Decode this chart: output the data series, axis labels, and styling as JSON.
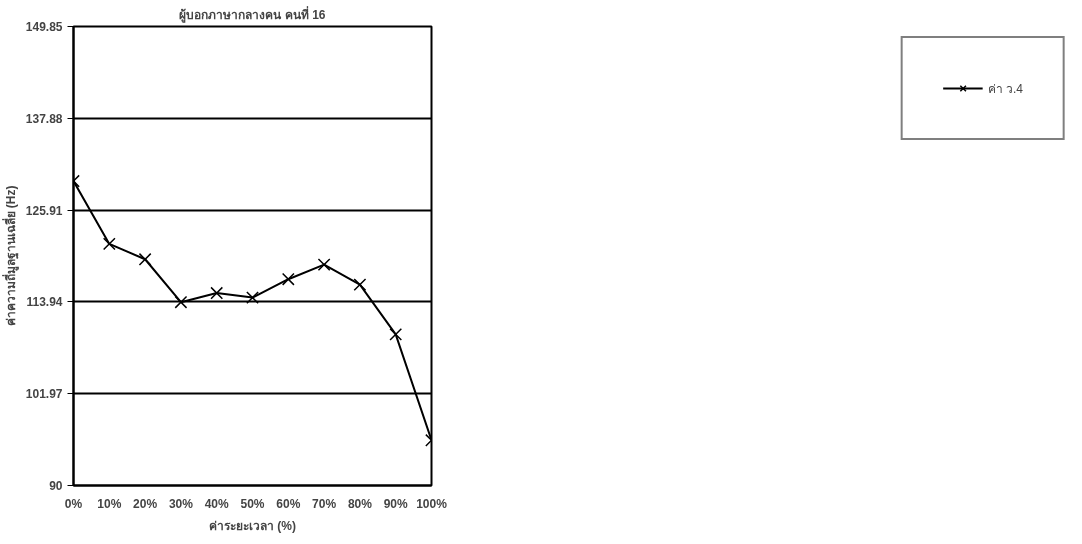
{
  "chart_data": {
    "type": "line",
    "title": "ผู้บอกภาษากลางคน คนที่ 16",
    "xlabel": "ค่าระยะเวลา (%)",
    "ylabel": "ค่าความถี่มูลฐานเฉลี่ย (Hz)",
    "categories": [
      "0%",
      "10%",
      "20%",
      "30%",
      "40%",
      "50%",
      "60%",
      "70%",
      "80%",
      "90%",
      "100%"
    ],
    "series": [
      {
        "name": "ค่า ว.4",
        "color": "#000000",
        "values": [
          129.7,
          121.5,
          119.5,
          113.9,
          115.1,
          114.5,
          116.9,
          118.8,
          116.2,
          109.7,
          95.9
        ]
      }
    ],
    "ylim": [
      90,
      149.85
    ],
    "yticks": [
      90,
      101.97,
      113.94,
      125.91,
      137.88,
      149.85
    ],
    "grid": "y",
    "legend": "right",
    "marker": "cross",
    "line_style": "solid"
  }
}
